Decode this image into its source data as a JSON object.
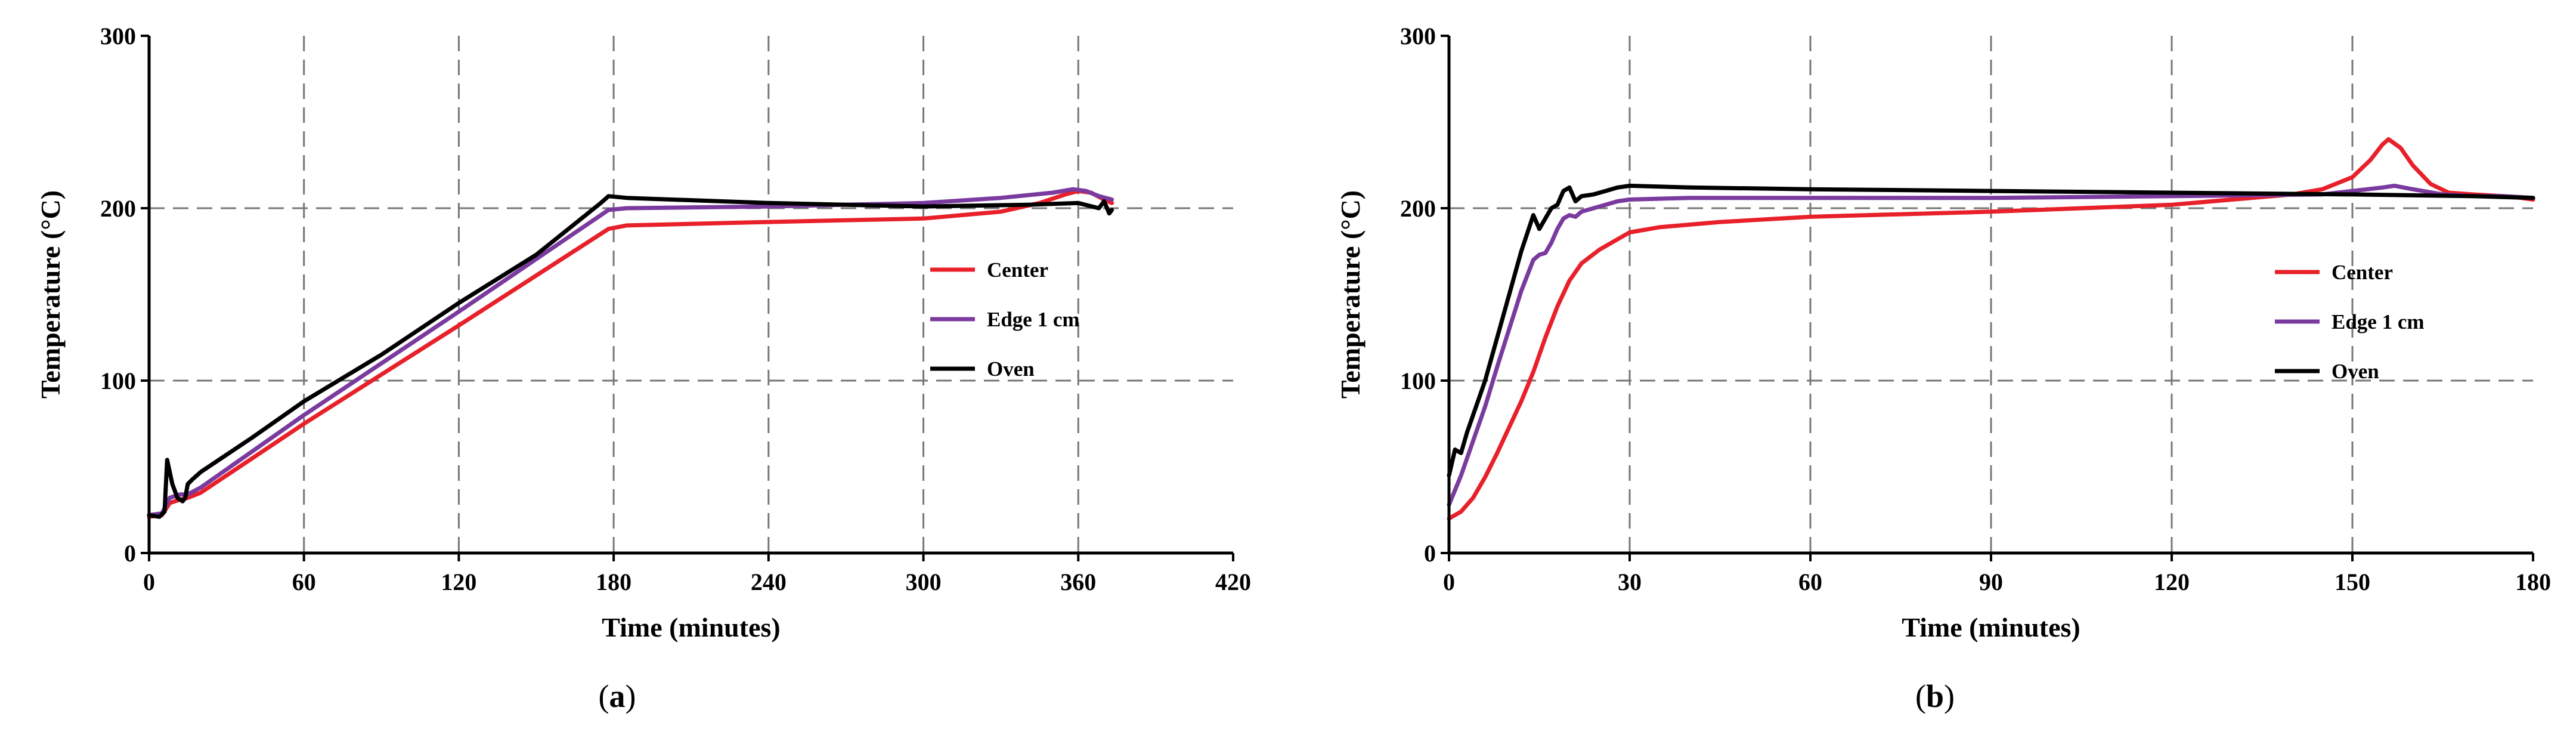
{
  "chart_data": [
    {
      "type": "line",
      "panel_label": "(a)",
      "panel_letter": "a",
      "xlabel": "Time (minutes)",
      "ylabel": "Temperature (°C)",
      "xlim": [
        0,
        420
      ],
      "ylim": [
        0,
        300
      ],
      "xticks": [
        0,
        60,
        120,
        180,
        240,
        300,
        360,
        420
      ],
      "yticks": [
        0,
        100,
        200,
        300
      ],
      "grid": true,
      "legend_position": "right",
      "series": [
        {
          "name": "Center",
          "color": "#e8202a",
          "x": [
            0,
            5,
            8,
            12,
            15,
            20,
            60,
            120,
            178,
            185,
            240,
            300,
            330,
            345,
            355,
            360,
            365,
            370,
            373
          ],
          "y": [
            21,
            22,
            29,
            31,
            32,
            35,
            75,
            132,
            188,
            190,
            192,
            194,
            198,
            203,
            208,
            210,
            209,
            205,
            203
          ]
        },
        {
          "name": "Edge 1 cm",
          "color": "#7a3a9e",
          "x": [
            0,
            5,
            8,
            12,
            15,
            20,
            60,
            120,
            178,
            185,
            240,
            300,
            330,
            350,
            358,
            363,
            368,
            373
          ],
          "y": [
            22,
            23,
            32,
            34,
            34,
            38,
            80,
            140,
            199,
            200,
            201,
            203,
            206,
            209,
            211,
            210,
            207,
            205
          ]
        },
        {
          "name": "Oven",
          "color": "#000000",
          "x": [
            0,
            4,
            6,
            7,
            9,
            11,
            13,
            14,
            15,
            17,
            20,
            40,
            60,
            90,
            120,
            150,
            175,
            178,
            185,
            240,
            300,
            340,
            360,
            368,
            370,
            372,
            373
          ],
          "y": [
            22,
            21,
            24,
            54,
            40,
            32,
            30,
            32,
            40,
            43,
            47,
            67,
            88,
            115,
            145,
            173,
            203,
            207,
            206,
            203,
            201,
            202,
            203,
            200,
            204,
            197,
            199
          ]
        }
      ]
    },
    {
      "type": "line",
      "panel_label": "(b)",
      "panel_letter": "b",
      "xlabel": "Time (minutes)",
      "ylabel": "Temperature (°C)",
      "xlim": [
        0,
        180
      ],
      "ylim": [
        0,
        300
      ],
      "xticks": [
        0,
        30,
        60,
        90,
        120,
        150,
        180
      ],
      "yticks": [
        0,
        100,
        200,
        300
      ],
      "grid": true,
      "legend_position": "right",
      "series": [
        {
          "name": "Center",
          "color": "#e8202a",
          "x": [
            0,
            2,
            4,
            6,
            8,
            10,
            12,
            14,
            16,
            18,
            20,
            22,
            25,
            28,
            30,
            35,
            45,
            60,
            90,
            120,
            140,
            145,
            150,
            153,
            155,
            156,
            158,
            160,
            163,
            166,
            170,
            175,
            178,
            180
          ],
          "y": [
            20,
            24,
            32,
            44,
            58,
            73,
            88,
            105,
            125,
            143,
            158,
            168,
            176,
            182,
            186,
            189,
            192,
            195,
            198,
            202,
            208,
            211,
            218,
            228,
            237,
            240,
            235,
            225,
            214,
            209,
            208,
            207,
            206,
            205
          ]
        },
        {
          "name": "Edge 1 cm",
          "color": "#7a3a9e",
          "x": [
            0,
            2,
            4,
            6,
            8,
            10,
            12,
            14,
            15,
            16,
            17,
            18,
            19,
            20,
            21,
            22,
            24,
            26,
            28,
            30,
            40,
            60,
            90,
            120,
            145,
            150,
            155,
            157,
            160,
            165,
            170,
            175,
            180
          ],
          "y": [
            28,
            45,
            65,
            85,
            108,
            130,
            152,
            170,
            173,
            174,
            180,
            188,
            194,
            196,
            195,
            198,
            200,
            202,
            204,
            205,
            206,
            206,
            206,
            207,
            208,
            210,
            212,
            213,
            211,
            208,
            207,
            207,
            206
          ]
        },
        {
          "name": "Oven",
          "color": "#000000",
          "x": [
            0,
            1,
            2,
            3,
            4,
            6,
            8,
            10,
            12,
            14,
            15,
            16,
            17,
            18,
            19,
            20,
            21,
            22,
            24,
            26,
            28,
            30,
            40,
            60,
            90,
            120,
            150,
            170,
            180
          ],
          "y": [
            45,
            60,
            58,
            70,
            80,
            100,
            125,
            150,
            175,
            196,
            188,
            194,
            200,
            202,
            210,
            212,
            204,
            207,
            208,
            210,
            212,
            213,
            212,
            211,
            210,
            209,
            208,
            207,
            206
          ]
        }
      ]
    }
  ]
}
